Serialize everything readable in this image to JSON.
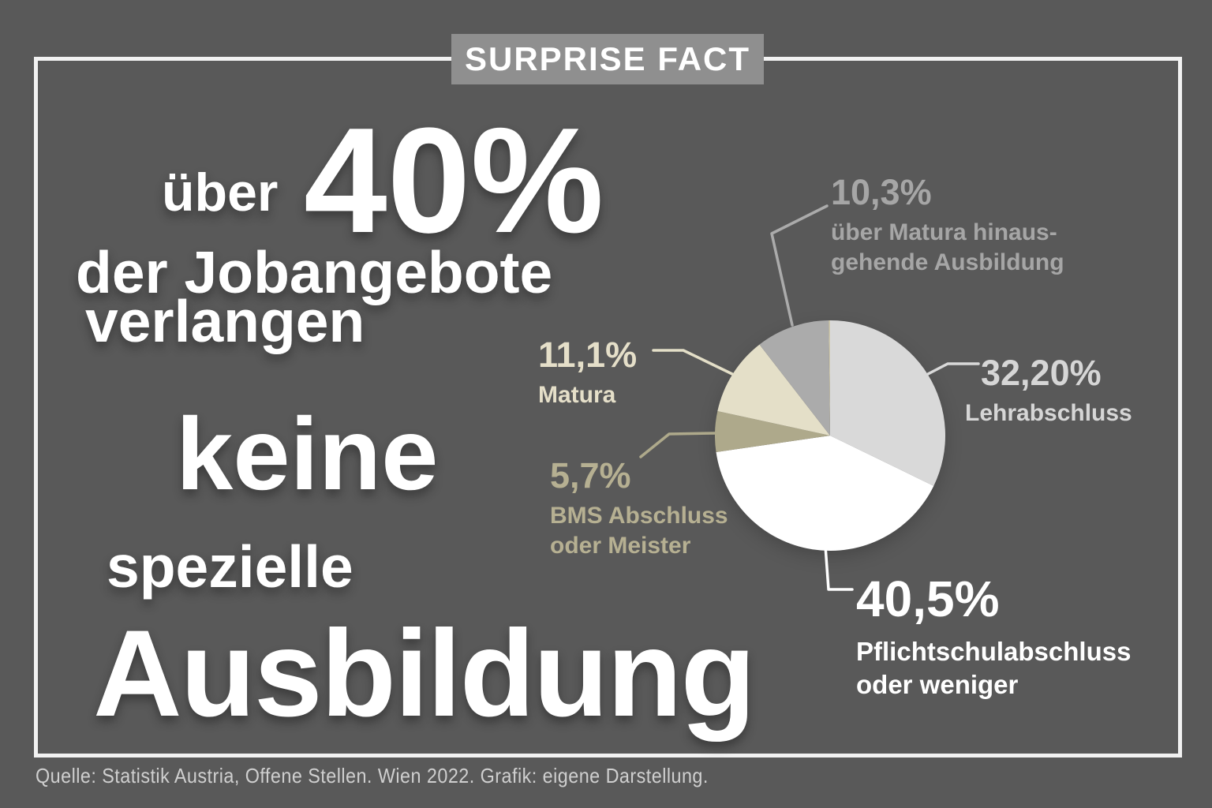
{
  "badge": {
    "text": "SURPRISE FACT"
  },
  "headline": {
    "prefix": "über",
    "big_number": "40%",
    "line2": "der Jobangebote",
    "line3": "verlangen",
    "line4": "keine",
    "line5": "spezielle",
    "line6": "Ausbildung"
  },
  "source": "Quelle: Statistik Austria, Offene Stellen. Wien 2022. Grafik: eigene Darstellung.",
  "colors": {
    "background": "#595959",
    "frame": "#f2f2f2",
    "badge_background": "#8f8f8f",
    "badge_text": "#ffffff",
    "headline_text": "#ffffff",
    "source_text": "#cfcfcf"
  },
  "chart_data": {
    "type": "pie",
    "unit": "percent",
    "direction": "clockwise",
    "start_angle_deg": 0,
    "slices": [
      {
        "label": "Lehrabschluss",
        "display_name": "Lehrabschluss",
        "value_label": "32,20%",
        "value": 32.2,
        "color": "#d9d9d9",
        "label_color": "#d6d6d6"
      },
      {
        "label": "Pflichtschulabschluss oder weniger",
        "display_name": "Pflichtschulabschluss\noder weniger",
        "value_label": "40,5%",
        "value": 40.5,
        "color": "#ffffff",
        "label_color": "#ffffff"
      },
      {
        "label": "BMS Abschluss oder Meister",
        "display_name": "BMS Abschluss\noder Meister",
        "value_label": "5,7%",
        "value": 5.7,
        "color": "#aea98b",
        "label_color": "#b6b092"
      },
      {
        "label": "Matura",
        "display_name": "Matura",
        "value_label": "11,1%",
        "value": 11.1,
        "color": "#e4dfc8",
        "label_color": "#e5dfc9"
      },
      {
        "label": "über Matura hinausgehende Ausbildung",
        "display_name": "über Matura hinaus-\ngehende Ausbildung",
        "value_label": "10,3%",
        "value": 10.3,
        "color": "#ababab",
        "label_color": "#a6a6a6"
      }
    ],
    "remainder_color": "#cfc9ae"
  }
}
